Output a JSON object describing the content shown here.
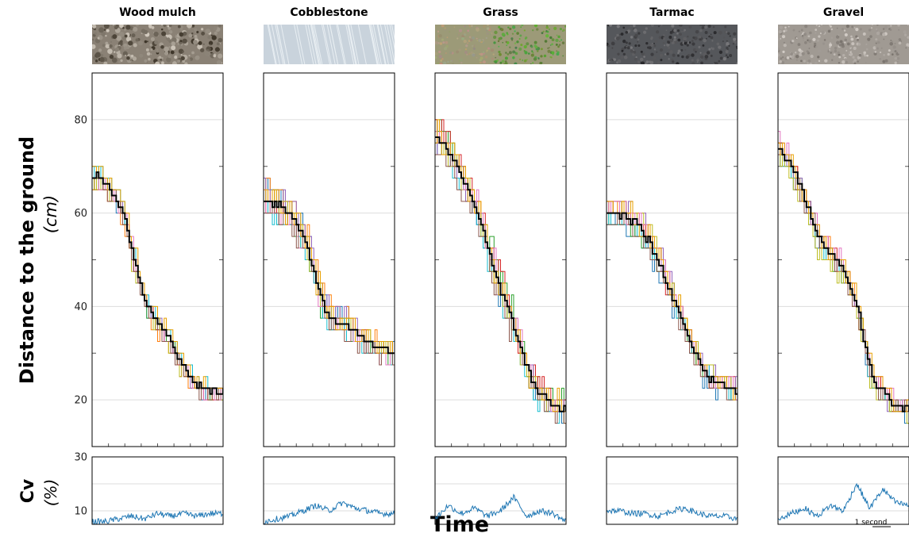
{
  "chart_data": {
    "type": "line",
    "xlabel": "Time",
    "ylabel": "Distance to the ground",
    "ylabel_unit": "(cm)",
    "cv_label": "Cv",
    "cv_unit": "(%)",
    "ylim": [
      10,
      90
    ],
    "yticks": [
      20,
      40,
      60,
      80
    ],
    "cv_ylim": [
      5,
      30
    ],
    "cv_yticks": [
      10,
      30
    ],
    "scale_bar_label": "1 second",
    "series_colors": [
      "#1f77b4",
      "#ff7f0e",
      "#2ca02c",
      "#d62728",
      "#9467bd",
      "#17becf",
      "#bcbd22",
      "#e377c2",
      "#8c564b",
      "#e8a000"
    ],
    "mean_color": "#000000",
    "panels": [
      {
        "name": "Wood mulch",
        "texture": "wood-mulch",
        "mean": [
          [
            0,
            68
          ],
          [
            0.06,
            68
          ],
          [
            0.1,
            66
          ],
          [
            0.18,
            63
          ],
          [
            0.24,
            60
          ],
          [
            0.3,
            52
          ],
          [
            0.36,
            45
          ],
          [
            0.42,
            40
          ],
          [
            0.5,
            36
          ],
          [
            0.58,
            33
          ],
          [
            0.64,
            30
          ],
          [
            0.72,
            26
          ],
          [
            0.8,
            23
          ],
          [
            0.9,
            22
          ],
          [
            1,
            22
          ]
        ],
        "cv": [
          [
            0,
            6
          ],
          [
            0.1,
            6
          ],
          [
            0.2,
            7
          ],
          [
            0.3,
            8
          ],
          [
            0.4,
            7
          ],
          [
            0.5,
            9
          ],
          [
            0.6,
            8
          ],
          [
            0.7,
            9
          ],
          [
            0.8,
            8
          ],
          [
            0.9,
            9
          ],
          [
            1,
            9
          ]
        ],
        "spread": 2.5
      },
      {
        "name": "Cobblestone",
        "texture": "cobblestone",
        "mean": [
          [
            0,
            63
          ],
          [
            0.1,
            62
          ],
          [
            0.18,
            60
          ],
          [
            0.24,
            58
          ],
          [
            0.3,
            55
          ],
          [
            0.36,
            50
          ],
          [
            0.42,
            44
          ],
          [
            0.48,
            38
          ],
          [
            0.56,
            37
          ],
          [
            0.64,
            36
          ],
          [
            0.72,
            34
          ],
          [
            0.8,
            32
          ],
          [
            0.9,
            31
          ],
          [
            1,
            30
          ]
        ],
        "cv": [
          [
            0,
            6
          ],
          [
            0.1,
            7
          ],
          [
            0.2,
            8
          ],
          [
            0.3,
            10
          ],
          [
            0.4,
            12
          ],
          [
            0.5,
            10
          ],
          [
            0.6,
            13
          ],
          [
            0.7,
            11
          ],
          [
            0.8,
            10
          ],
          [
            0.9,
            9
          ],
          [
            1,
            9
          ]
        ],
        "spread": 4
      },
      {
        "name": "Grass",
        "texture": "grass",
        "mean": [
          [
            0,
            76
          ],
          [
            0.08,
            74
          ],
          [
            0.16,
            70
          ],
          [
            0.24,
            66
          ],
          [
            0.32,
            60
          ],
          [
            0.38,
            55
          ],
          [
            0.44,
            48
          ],
          [
            0.52,
            42
          ],
          [
            0.6,
            36
          ],
          [
            0.66,
            30
          ],
          [
            0.74,
            24
          ],
          [
            0.82,
            21
          ],
          [
            0.9,
            19
          ],
          [
            1,
            18
          ]
        ],
        "cv": [
          [
            0,
            7
          ],
          [
            0.1,
            12
          ],
          [
            0.2,
            9
          ],
          [
            0.3,
            11
          ],
          [
            0.4,
            8
          ],
          [
            0.5,
            10
          ],
          [
            0.6,
            15
          ],
          [
            0.7,
            8
          ],
          [
            0.8,
            10
          ],
          [
            0.9,
            9
          ],
          [
            1,
            6
          ]
        ],
        "spread": 5
      },
      {
        "name": "Tarmac",
        "texture": "tarmac",
        "mean": [
          [
            0,
            60
          ],
          [
            0.08,
            60
          ],
          [
            0.16,
            59
          ],
          [
            0.24,
            57
          ],
          [
            0.32,
            54
          ],
          [
            0.4,
            49
          ],
          [
            0.48,
            43
          ],
          [
            0.56,
            38
          ],
          [
            0.64,
            32
          ],
          [
            0.72,
            27
          ],
          [
            0.8,
            24
          ],
          [
            0.88,
            23
          ],
          [
            1,
            22
          ]
        ],
        "cv": [
          [
            0,
            10
          ],
          [
            0.1,
            10
          ],
          [
            0.2,
            9
          ],
          [
            0.3,
            9
          ],
          [
            0.4,
            8
          ],
          [
            0.5,
            10
          ],
          [
            0.6,
            11
          ],
          [
            0.7,
            9
          ],
          [
            0.8,
            8
          ],
          [
            0.9,
            8
          ],
          [
            1,
            7
          ]
        ],
        "spread": 3.5
      },
      {
        "name": "Gravel",
        "texture": "gravel",
        "mean": [
          [
            0,
            74
          ],
          [
            0.08,
            71
          ],
          [
            0.16,
            66
          ],
          [
            0.24,
            60
          ],
          [
            0.3,
            55
          ],
          [
            0.38,
            52
          ],
          [
            0.44,
            50
          ],
          [
            0.52,
            46
          ],
          [
            0.6,
            40
          ],
          [
            0.66,
            32
          ],
          [
            0.72,
            24
          ],
          [
            0.8,
            22
          ],
          [
            0.88,
            19
          ],
          [
            1,
            18
          ]
        ],
        "cv": [
          [
            0,
            7
          ],
          [
            0.1,
            9
          ],
          [
            0.2,
            11
          ],
          [
            0.3,
            8
          ],
          [
            0.4,
            12
          ],
          [
            0.5,
            10
          ],
          [
            0.6,
            20
          ],
          [
            0.7,
            11
          ],
          [
            0.8,
            18
          ],
          [
            0.9,
            13
          ],
          [
            1,
            12
          ]
        ],
        "spread": 3.5
      }
    ]
  }
}
